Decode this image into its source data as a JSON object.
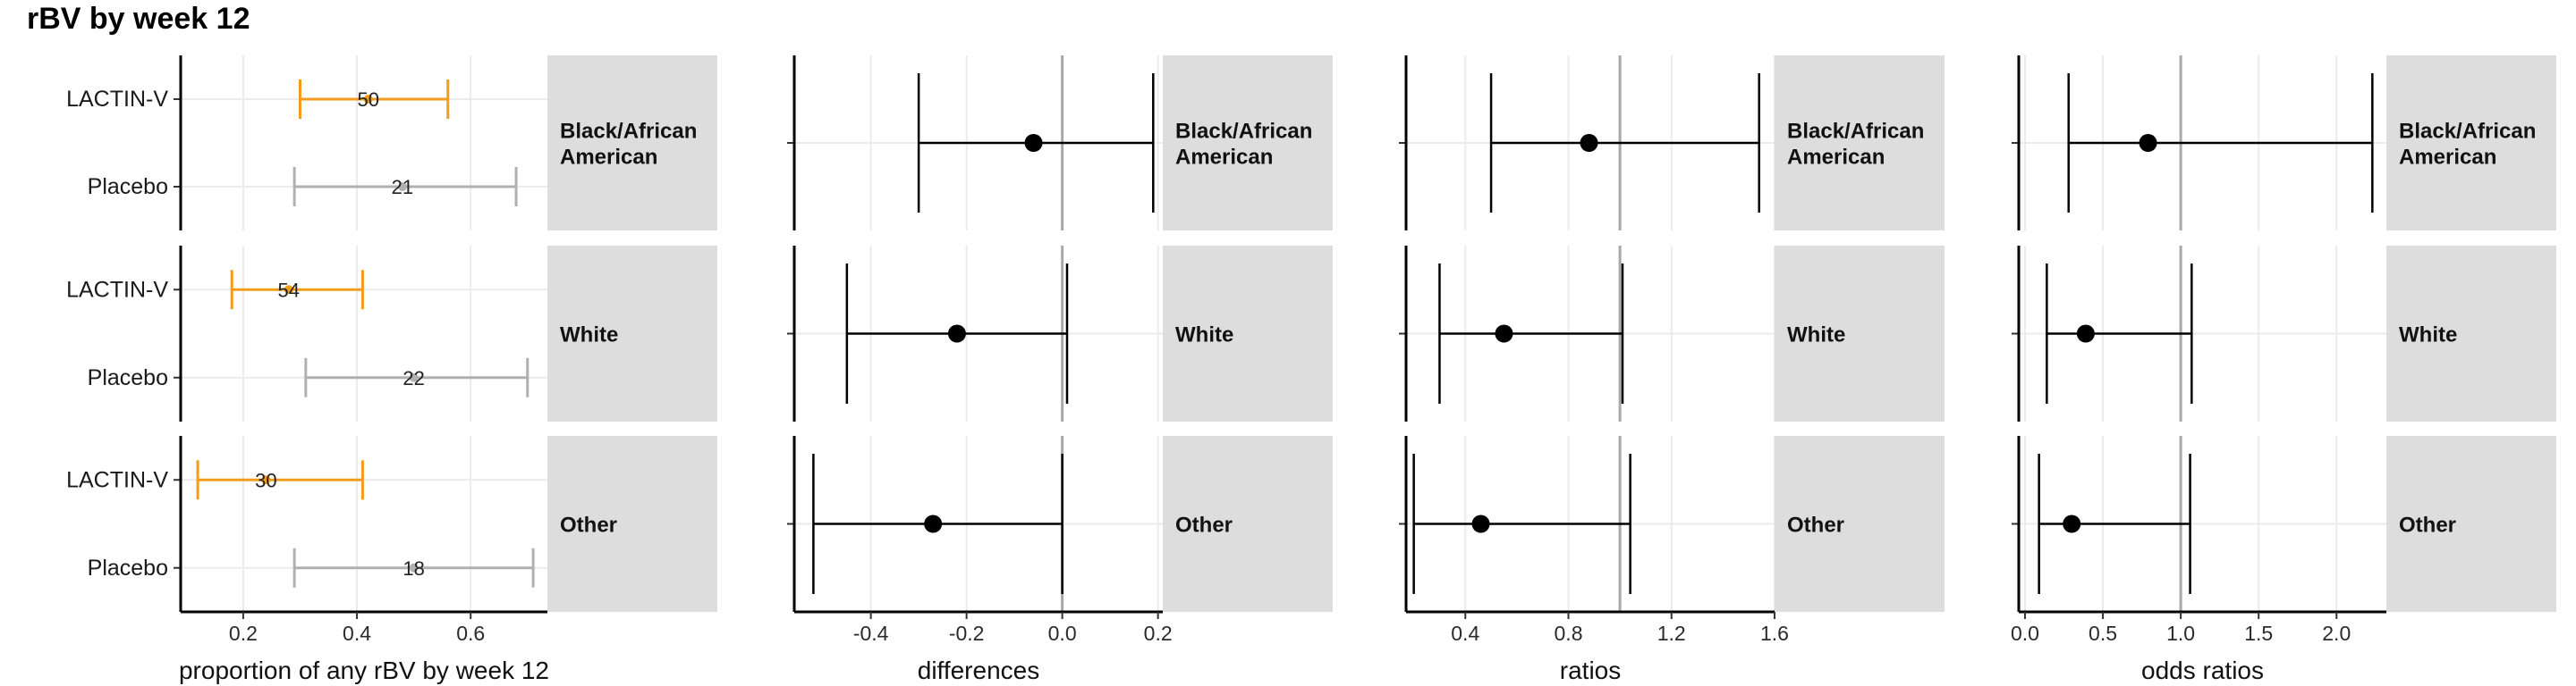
{
  "title": "rBV by week 12",
  "colors": {
    "lactin": "#F39C1B",
    "placebo": "#B0B0B0",
    "estimate": "#000000",
    "strip": "#DDDDDD",
    "grid": "#EBEBEB",
    "refline": "#A8A8A8"
  },
  "chart_data": [
    {
      "type": "scatter",
      "id": "proportions",
      "xlabel": "proportion of any rBV by week 12",
      "xlim": [
        0.09,
        0.735
      ],
      "xticks": [
        0.2,
        0.4,
        0.6
      ],
      "xticklabels": [
        "0.2",
        "0.4",
        "0.6"
      ],
      "categories": [
        "LACTIN-V",
        "Placebo"
      ],
      "facets": [
        {
          "strip": [
            "Black/African",
            "American"
          ],
          "rows": [
            {
              "arm": "LACTIN-V",
              "estimate": 0.42,
              "lower": 0.3,
              "upper": 0.56,
              "n": "50"
            },
            {
              "arm": "Placebo",
              "estimate": 0.48,
              "lower": 0.29,
              "upper": 0.68,
              "n": "21"
            }
          ]
        },
        {
          "strip": [
            "White"
          ],
          "rows": [
            {
              "arm": "LACTIN-V",
              "estimate": 0.28,
              "lower": 0.18,
              "upper": 0.41,
              "n": "54"
            },
            {
              "arm": "Placebo",
              "estimate": 0.5,
              "lower": 0.31,
              "upper": 0.7,
              "n": "22"
            }
          ]
        },
        {
          "strip": [
            "Other"
          ],
          "rows": [
            {
              "arm": "LACTIN-V",
              "estimate": 0.24,
              "lower": 0.12,
              "upper": 0.41,
              "n": "30"
            },
            {
              "arm": "Placebo",
              "estimate": 0.5,
              "lower": 0.29,
              "upper": 0.71,
              "n": "18"
            }
          ]
        }
      ]
    },
    {
      "type": "scatter",
      "id": "differences",
      "xlabel": "differences",
      "xlim": [
        -0.56,
        0.21
      ],
      "xticks": [
        -0.4,
        -0.2,
        0.0,
        0.2
      ],
      "xticklabels": [
        "-0.4",
        "-0.2",
        "0.0",
        "0.2"
      ],
      "reference": 0,
      "facets": [
        {
          "strip": [
            "Black/African",
            "American"
          ],
          "estimate": -0.06,
          "lower": -0.3,
          "upper": 0.19
        },
        {
          "strip": [
            "White"
          ],
          "estimate": -0.22,
          "lower": -0.45,
          "upper": 0.01
        },
        {
          "strip": [
            "Other"
          ],
          "estimate": -0.27,
          "lower": -0.52,
          "upper": 0.0
        }
      ]
    },
    {
      "type": "scatter",
      "id": "ratios",
      "xlabel": "ratios",
      "xlim": [
        0.17,
        1.6
      ],
      "xticks": [
        0.4,
        0.8,
        1.2,
        1.6
      ],
      "xticklabels": [
        "0.4",
        "0.8",
        "1.2",
        "1.6"
      ],
      "reference": 1,
      "facets": [
        {
          "strip": [
            "Black/African",
            "American"
          ],
          "estimate": 0.88,
          "lower": 0.5,
          "upper": 1.54
        },
        {
          "strip": [
            "White"
          ],
          "estimate": 0.55,
          "lower": 0.3,
          "upper": 1.01
        },
        {
          "strip": [
            "Other"
          ],
          "estimate": 0.46,
          "lower": 0.2,
          "upper": 1.04
        }
      ]
    },
    {
      "type": "scatter",
      "id": "odds",
      "xlabel": "odds ratios",
      "xlim": [
        -0.04,
        2.32
      ],
      "xticks": [
        0.0,
        0.5,
        1.0,
        1.5,
        2.0
      ],
      "xticklabels": [
        "0.0",
        "0.5",
        "1.0",
        "1.5",
        "2.0"
      ],
      "reference": 1,
      "facets": [
        {
          "strip": [
            "Black/African",
            "American"
          ],
          "estimate": 0.79,
          "lower": 0.28,
          "upper": 2.23
        },
        {
          "strip": [
            "White"
          ],
          "estimate": 0.39,
          "lower": 0.14,
          "upper": 1.07
        },
        {
          "strip": [
            "Other"
          ],
          "estimate": 0.3,
          "lower": 0.09,
          "upper": 1.06
        }
      ]
    }
  ]
}
